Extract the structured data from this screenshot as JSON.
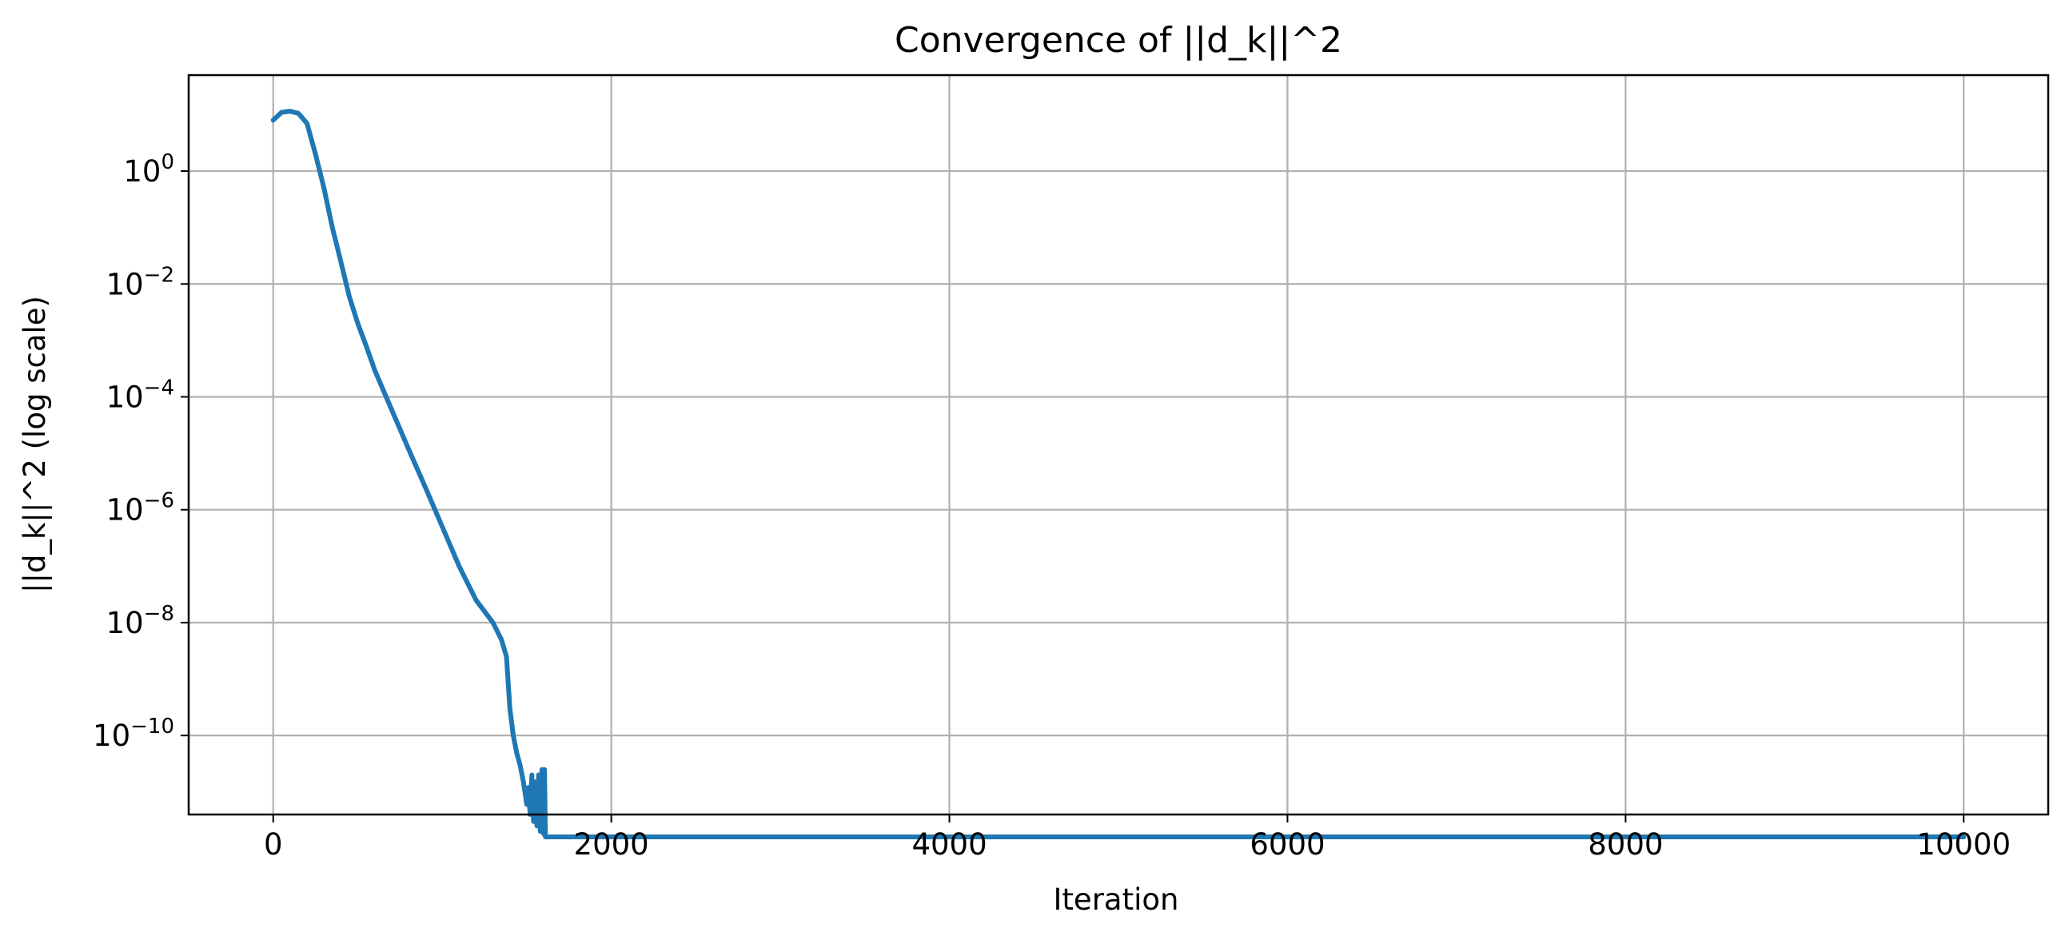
{
  "chart_data": {
    "type": "line",
    "title": "Convergence of ||d_k||^2",
    "xlabel": "Iteration",
    "ylabel": "||d_k||^2 (log scale)",
    "yscale": "log",
    "grid": true,
    "xlim": [
      -500,
      10500
    ],
    "ylim_exp": [
      -11.4,
      1.7
    ],
    "x_ticks": [
      0,
      2000,
      4000,
      6000,
      8000,
      10000
    ],
    "x_tick_labels": [
      "0",
      "2000",
      "4000",
      "6000",
      "8000",
      "10000"
    ],
    "y_tick_exponents": [
      0,
      -2,
      -4,
      -6,
      -8,
      -10
    ],
    "y_tick_labels": [
      {
        "base": "10",
        "exp": "0"
      },
      {
        "base": "10",
        "exp": "−2"
      },
      {
        "base": "10",
        "exp": "−4"
      },
      {
        "base": "10",
        "exp": "−6"
      },
      {
        "base": "10",
        "exp": "−8"
      },
      {
        "base": "10",
        "exp": "−10"
      }
    ],
    "colors": {
      "line": "#1f77b4",
      "grid": "#b0b0b0",
      "axes": "#000000"
    },
    "series": [
      {
        "x": [
          0,
          50,
          100,
          150,
          200,
          250,
          300,
          350,
          400,
          450,
          500,
          550,
          600,
          700,
          800,
          900,
          1000,
          1100,
          1200,
          1300,
          1350,
          1380,
          1400,
          1420,
          1440,
          1460,
          1480,
          1500,
          1510,
          1520,
          1530,
          1540,
          1550,
          1560,
          1570,
          1580,
          1590,
          1600,
          1605,
          1610,
          1620,
          2000,
          4000,
          6000,
          8000,
          10000
        ],
        "y": [
          8.0,
          11.0,
          11.5,
          10.5,
          7.0,
          2.0,
          0.5,
          0.1,
          0.025,
          0.006,
          0.002,
          0.0008,
          0.0003,
          6e-05,
          1.2e-05,
          2.5e-06,
          5e-07,
          1e-07,
          2.5e-08,
          1e-08,
          5e-09,
          2.5e-09,
          3e-10,
          1e-10,
          5e-11,
          3e-11,
          1.5e-11,
          6e-12,
          1.2e-11,
          4e-12,
          2e-11,
          3e-12,
          1.5e-11,
          2.5e-12,
          2e-11,
          2e-12,
          2.5e-11,
          1.8e-12,
          2.5e-11,
          1.6e-12,
          1.6e-12,
          1.6e-12,
          1.6e-12,
          1.6e-12,
          1.6e-12,
          1.6e-12
        ]
      }
    ]
  }
}
